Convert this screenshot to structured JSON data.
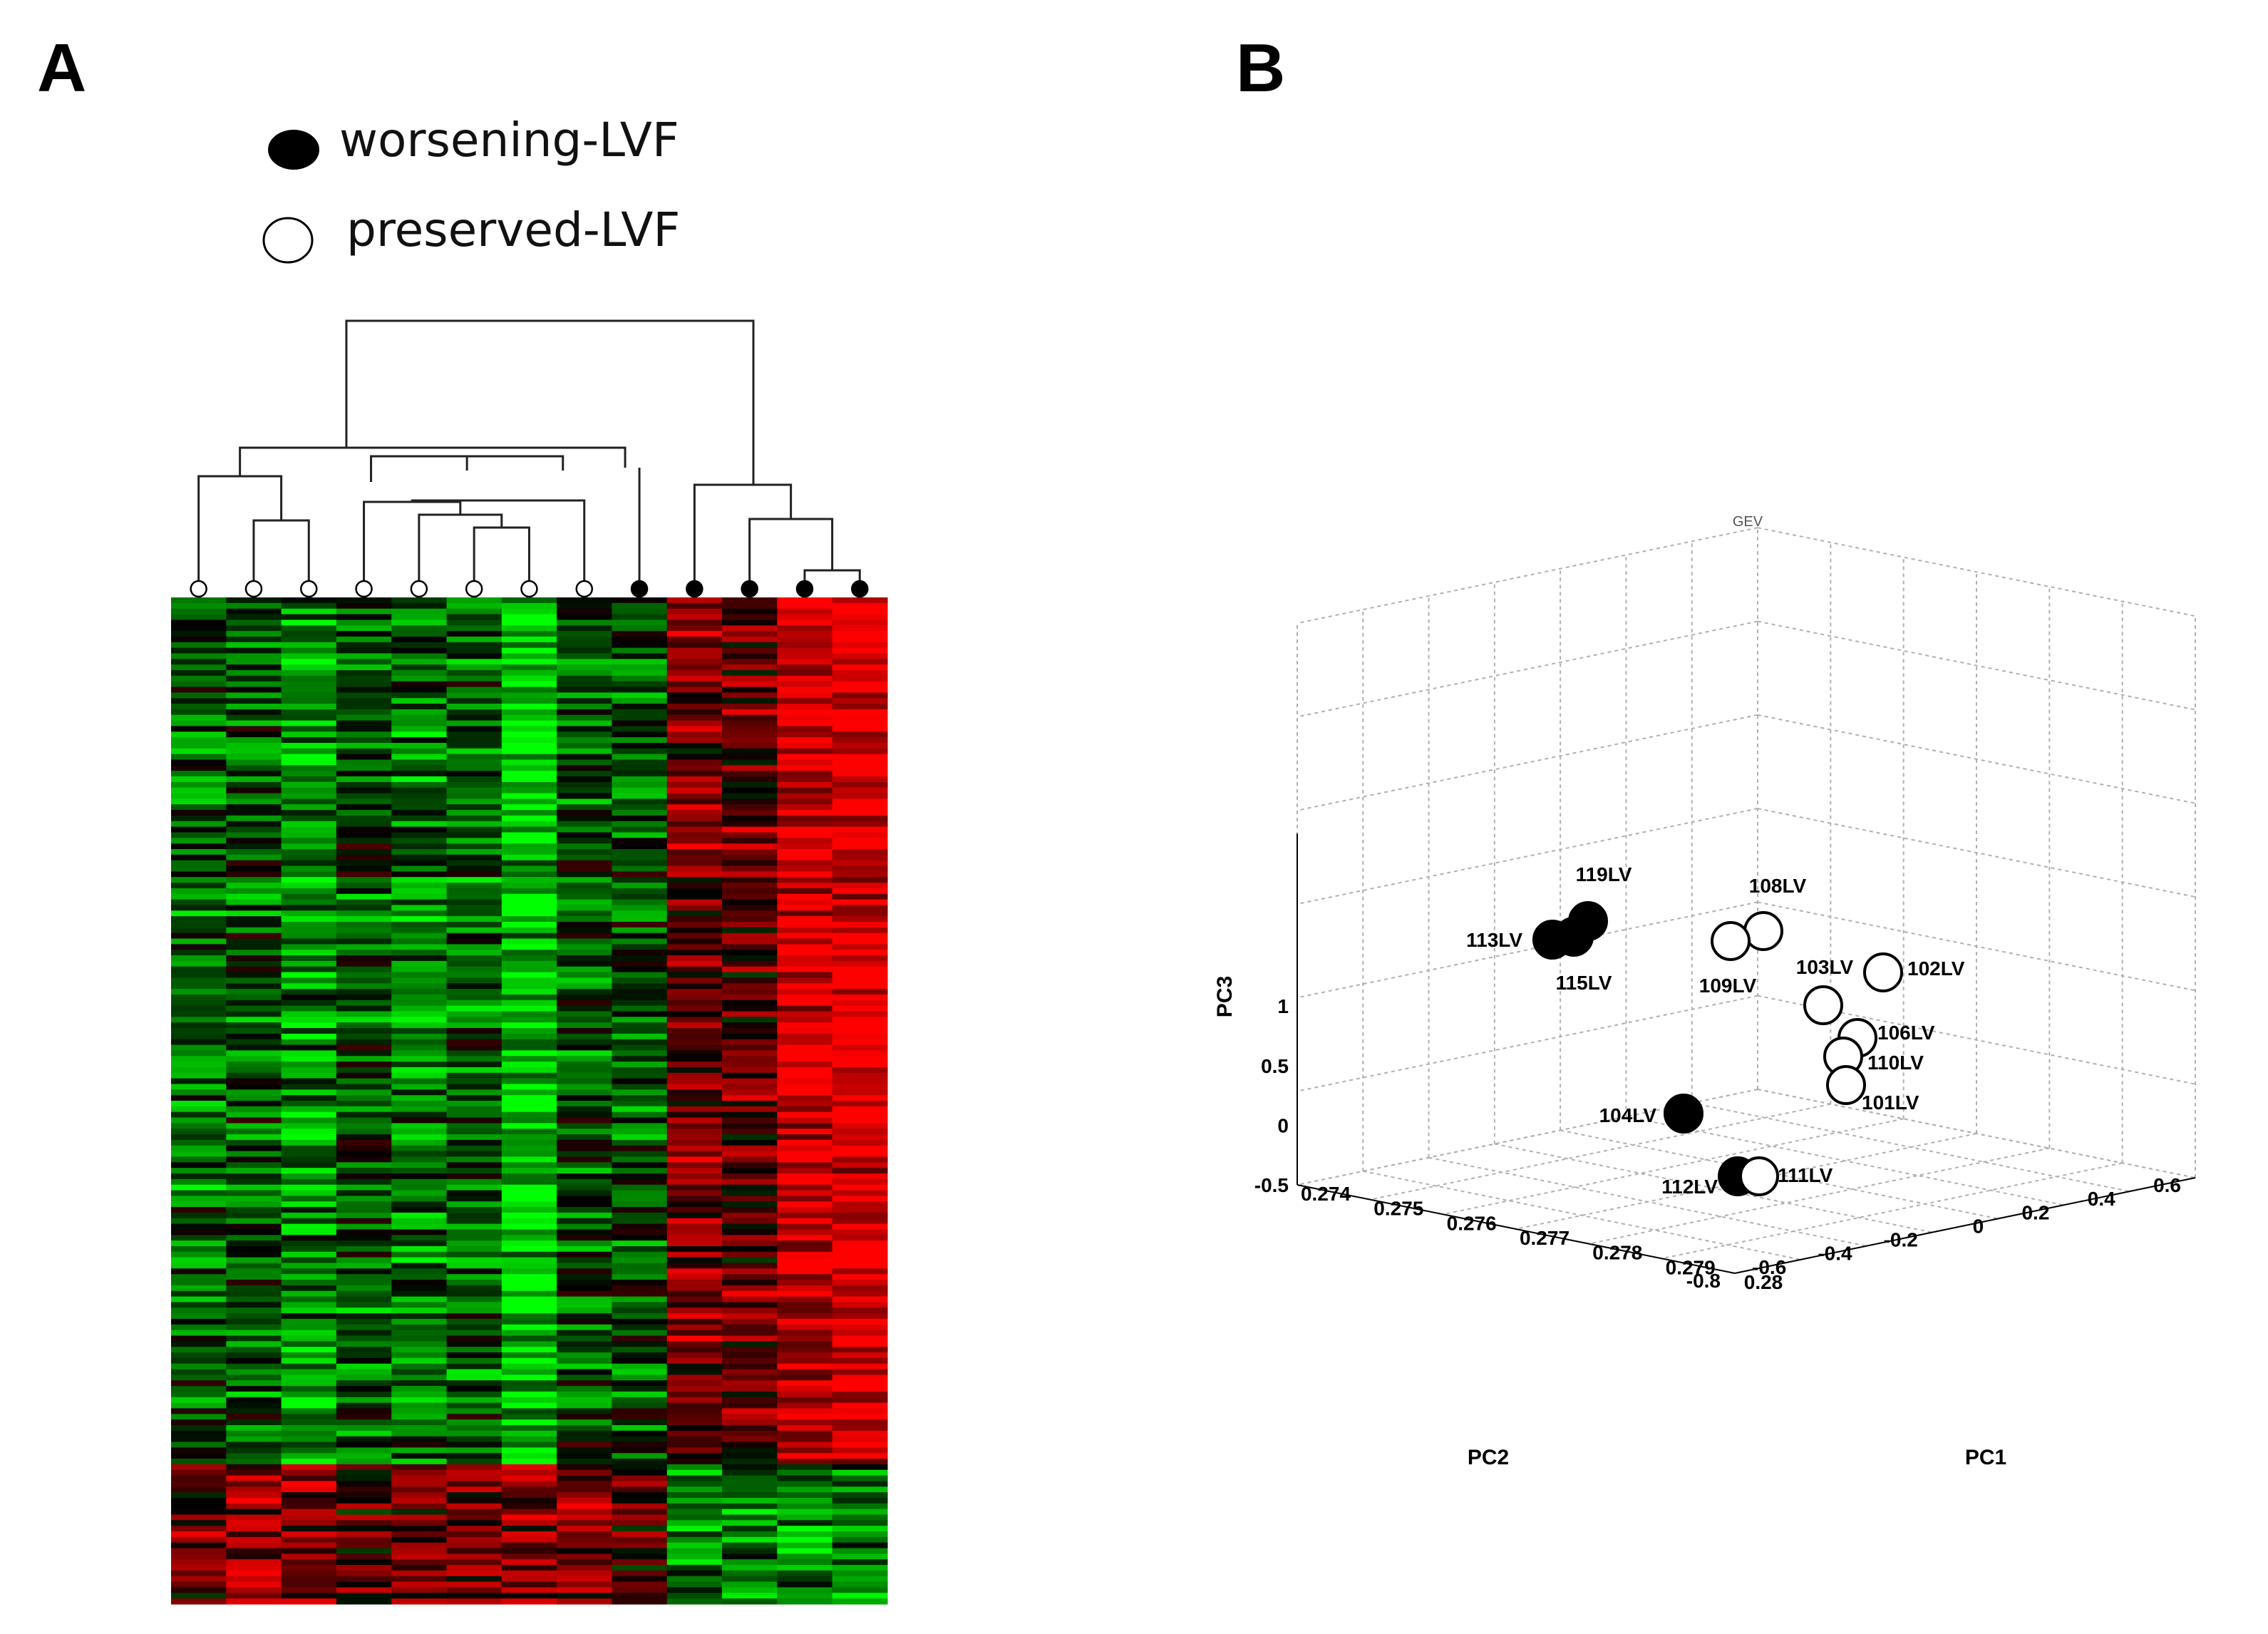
{
  "panel_a_label": "A",
  "panel_b_label": "B",
  "legend": {
    "worsening": "worsening-LVF",
    "preserved": "preserved-LVF"
  },
  "colors": {
    "worsening": "#000000",
    "preserved": "#ffffff",
    "heat_high": "#ff0000",
    "heat_low": "#00ff00",
    "heat_mid": "#000000",
    "grid": "#b0b0b0"
  },
  "chart_data": [
    {
      "type": "heatmap",
      "title": "",
      "columns": [
        {
          "group": "preserved"
        },
        {
          "group": "preserved"
        },
        {
          "group": "preserved"
        },
        {
          "group": "preserved"
        },
        {
          "group": "preserved"
        },
        {
          "group": "preserved"
        },
        {
          "group": "preserved"
        },
        {
          "group": "preserved"
        },
        {
          "group": "worsening"
        },
        {
          "group": "worsening"
        },
        {
          "group": "worsening"
        },
        {
          "group": "worsening"
        },
        {
          "group": "worsening"
        }
      ],
      "column_mean_expression": [
        -0.35,
        -0.3,
        -0.55,
        -0.3,
        -0.45,
        -0.4,
        -0.8,
        -0.3,
        -0.3,
        0.45,
        0.35,
        0.85,
        0.9
      ],
      "lower_block_column_expression": [
        0.3,
        0.45,
        0.45,
        0.2,
        0.35,
        0.35,
        0.4,
        0.45,
        0.15,
        -0.55,
        -0.5,
        -0.6,
        -0.45
      ],
      "dendrogram": "hierarchical clustering; preserved-LVF columns cluster separately from worsening-LVF columns",
      "color_scale": [
        "green (low)",
        "black",
        "red (high)"
      ]
    },
    {
      "type": "scatter",
      "subtitle": "GEV",
      "xlabel": "PC1",
      "ylabel": "PC2",
      "zlabel": "PC3",
      "xlim": [
        0.274,
        0.28
      ],
      "ylim": [
        -0.8,
        0.6
      ],
      "zlim": [
        -0.5,
        1
      ],
      "x_ticks": [
        "0.274",
        "0.275",
        "0.276",
        "0.277",
        "0.278",
        "0.279",
        "0.28"
      ],
      "y_ticks": [
        "-0.8",
        "-0.6",
        "-0.4",
        "-0.2",
        "0",
        "0.2",
        "0.4",
        "0.6"
      ],
      "z_ticks": [
        "-0.5",
        "0",
        "0.5",
        "1"
      ],
      "grid": true,
      "points": [
        {
          "label": "119LV",
          "group": "worsening",
          "pc1": 0.2745,
          "pc2": 0.15,
          "pc3": 0.78
        },
        {
          "label": "113LV",
          "group": "worsening",
          "pc1": 0.2743,
          "pc2": 0.17,
          "pc3": 0.75
        },
        {
          "label": "115LV",
          "group": "worsening",
          "pc1": 0.2744,
          "pc2": 0.14,
          "pc3": 0.74
        },
        {
          "label": "104LV",
          "group": "worsening",
          "pc1": 0.2745,
          "pc2": -0.45,
          "pc3": 0.28
        },
        {
          "label": "112LV",
          "group": "worsening",
          "pc1": 0.2747,
          "pc2": -0.62,
          "pc3": 0.19
        },
        {
          "label": "108LV",
          "group": "preserved",
          "pc1": 0.2771,
          "pc2": 0.22,
          "pc3": 0.31
        },
        {
          "label": "109LV",
          "group": "preserved",
          "pc1": 0.2768,
          "pc2": 0.24,
          "pc3": 0.29
        },
        {
          "label": "103LV",
          "group": "preserved",
          "pc1": 0.2772,
          "pc2": 0.03,
          "pc3": 0.14
        },
        {
          "label": "102LV",
          "group": "preserved",
          "pc1": 0.2779,
          "pc2": 0.12,
          "pc3": 0.08
        },
        {
          "label": "106LV",
          "group": "preserved",
          "pc1": 0.2772,
          "pc2": -0.02,
          "pc3": 0.12
        },
        {
          "label": "110LV",
          "group": "preserved",
          "pc1": 0.2772,
          "pc2": -0.02,
          "pc3": 0.06
        },
        {
          "label": "101LV",
          "group": "preserved",
          "pc1": 0.2771,
          "pc2": -0.09,
          "pc3": 0.02
        },
        {
          "label": "111LV",
          "group": "preserved",
          "pc1": 0.2749,
          "pc2": -0.62,
          "pc3": 0.2
        }
      ]
    }
  ]
}
